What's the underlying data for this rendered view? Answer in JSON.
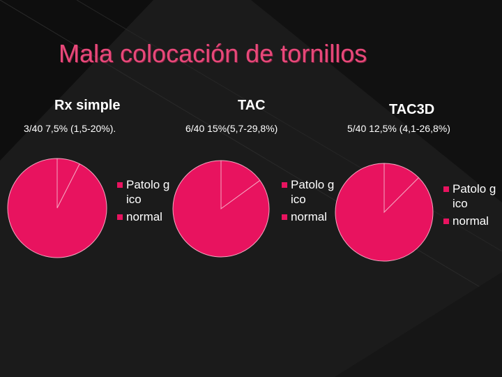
{
  "slide": {
    "title": "Mala colocación de tornillos"
  },
  "colors": {
    "background": "#111111",
    "title": "#e8497a",
    "slice_main": "#e8135f",
    "slice_minor": "#f26a92",
    "slice_border": "#f5a6c0"
  },
  "chart_data": [
    {
      "type": "pie",
      "title": "Rx simple",
      "stat": "3/40  7,5% (1,5-20%).",
      "categories": [
        "Patolo gico",
        "normal"
      ],
      "values": [
        7.5,
        92.5
      ],
      "legend": "right"
    },
    {
      "type": "pie",
      "title": "TAC",
      "stat": "6/40 15%(5,7-29,8%)",
      "categories": [
        "Patolo gico",
        "normal"
      ],
      "values": [
        15,
        85
      ],
      "legend": "right"
    },
    {
      "type": "pie",
      "title": "TAC3D",
      "stat": "5/40 12,5% (4,1-26,8%)",
      "categories": [
        "Patolo gico",
        "normal"
      ],
      "values": [
        12.5,
        87.5
      ],
      "legend": "right"
    }
  ]
}
